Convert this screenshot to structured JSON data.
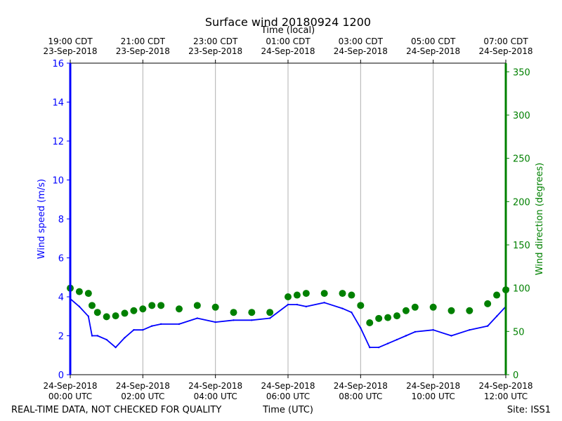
{
  "chart_data": {
    "type": "line",
    "title": "Surface wind 20180924 1200",
    "top_xlabel": "Time (local)",
    "xlabel": "Time (UTC)",
    "ylabel_left": "Wind speed (m/s)",
    "ylabel_right": "Wind direction (degrees)",
    "xlim_hours_utc": [
      0,
      12
    ],
    "ylim_left": [
      0,
      16
    ],
    "ylim_right": [
      0,
      360
    ],
    "left_ticks": [
      0,
      2,
      4,
      6,
      8,
      10,
      12,
      14,
      16
    ],
    "right_ticks": [
      0,
      50,
      100,
      150,
      200,
      250,
      300,
      350
    ],
    "bottom_ticks": [
      {
        "hour": 0,
        "line1": "24-Sep-2018",
        "line2": "00:00 UTC"
      },
      {
        "hour": 2,
        "line1": "24-Sep-2018",
        "line2": "02:00 UTC"
      },
      {
        "hour": 4,
        "line1": "24-Sep-2018",
        "line2": "04:00 UTC"
      },
      {
        "hour": 6,
        "line1": "24-Sep-2018",
        "line2": "06:00 UTC"
      },
      {
        "hour": 8,
        "line1": "24-Sep-2018",
        "line2": "08:00 UTC"
      },
      {
        "hour": 10,
        "line1": "24-Sep-2018",
        "line2": "10:00 UTC"
      },
      {
        "hour": 12,
        "line1": "24-Sep-2018",
        "line2": "12:00 UTC"
      }
    ],
    "top_ticks": [
      {
        "hour": 0,
        "line1": "19:00 CDT",
        "line2": "23-Sep-2018"
      },
      {
        "hour": 2,
        "line1": "21:00 CDT",
        "line2": "23-Sep-2018"
      },
      {
        "hour": 4,
        "line1": "23:00 CDT",
        "line2": "23-Sep-2018"
      },
      {
        "hour": 6,
        "line1": "01:00 CDT",
        "line2": "24-Sep-2018"
      },
      {
        "hour": 8,
        "line1": "03:00 CDT",
        "line2": "24-Sep-2018"
      },
      {
        "hour": 10,
        "line1": "05:00 CDT",
        "line2": "24-Sep-2018"
      },
      {
        "hour": 12,
        "line1": "07:00 CDT",
        "line2": "24-Sep-2018"
      }
    ],
    "grid": "vertical-only",
    "series": [
      {
        "name": "Wind speed",
        "axis": "left",
        "style": "line",
        "color": "#0000ff",
        "x_hours": [
          0,
          0.25,
          0.5,
          0.6,
          0.75,
          1.0,
          1.25,
          1.5,
          1.75,
          2.0,
          2.25,
          2.5,
          3.0,
          3.5,
          4.0,
          4.5,
          5.0,
          5.5,
          6.0,
          6.25,
          6.5,
          7.0,
          7.5,
          7.75,
          8.0,
          8.25,
          8.5,
          8.75,
          9.0,
          9.25,
          9.5,
          10.0,
          10.5,
          11.0,
          11.5,
          11.75,
          12.0
        ],
        "values": [
          3.9,
          3.5,
          3.0,
          2.0,
          2.0,
          1.8,
          1.4,
          1.9,
          2.3,
          2.3,
          2.5,
          2.6,
          2.6,
          2.9,
          2.7,
          2.8,
          2.8,
          2.9,
          3.6,
          3.6,
          3.5,
          3.7,
          3.4,
          3.2,
          2.4,
          1.4,
          1.4,
          1.6,
          1.8,
          2.0,
          2.2,
          2.3,
          2.0,
          2.3,
          2.5,
          3.0,
          3.5
        ]
      },
      {
        "name": "Wind direction",
        "axis": "right",
        "style": "markers",
        "color": "#008000",
        "x_hours": [
          0,
          0.25,
          0.5,
          0.6,
          0.75,
          1.0,
          1.25,
          1.5,
          1.75,
          2.0,
          2.25,
          2.5,
          3.0,
          3.5,
          4.0,
          4.5,
          5.0,
          5.5,
          6.0,
          6.25,
          6.5,
          7.0,
          7.5,
          7.75,
          8.0,
          8.25,
          8.5,
          8.75,
          9.0,
          9.25,
          9.5,
          10.0,
          10.5,
          11.0,
          11.5,
          11.75,
          12.0
        ],
        "values": [
          100,
          96,
          94,
          80,
          72,
          67,
          68,
          71,
          74,
          76,
          80,
          80,
          76,
          80,
          78,
          72,
          72,
          72,
          90,
          92,
          94,
          94,
          94,
          92,
          80,
          60,
          65,
          66,
          68,
          74,
          78,
          78,
          74,
          74,
          82,
          92,
          98
        ]
      }
    ]
  },
  "footer": {
    "left_note": "REAL-TIME DATA, NOT CHECKED FOR QUALITY",
    "center_label": "Time (UTC)",
    "site": "Site: ISS1"
  }
}
